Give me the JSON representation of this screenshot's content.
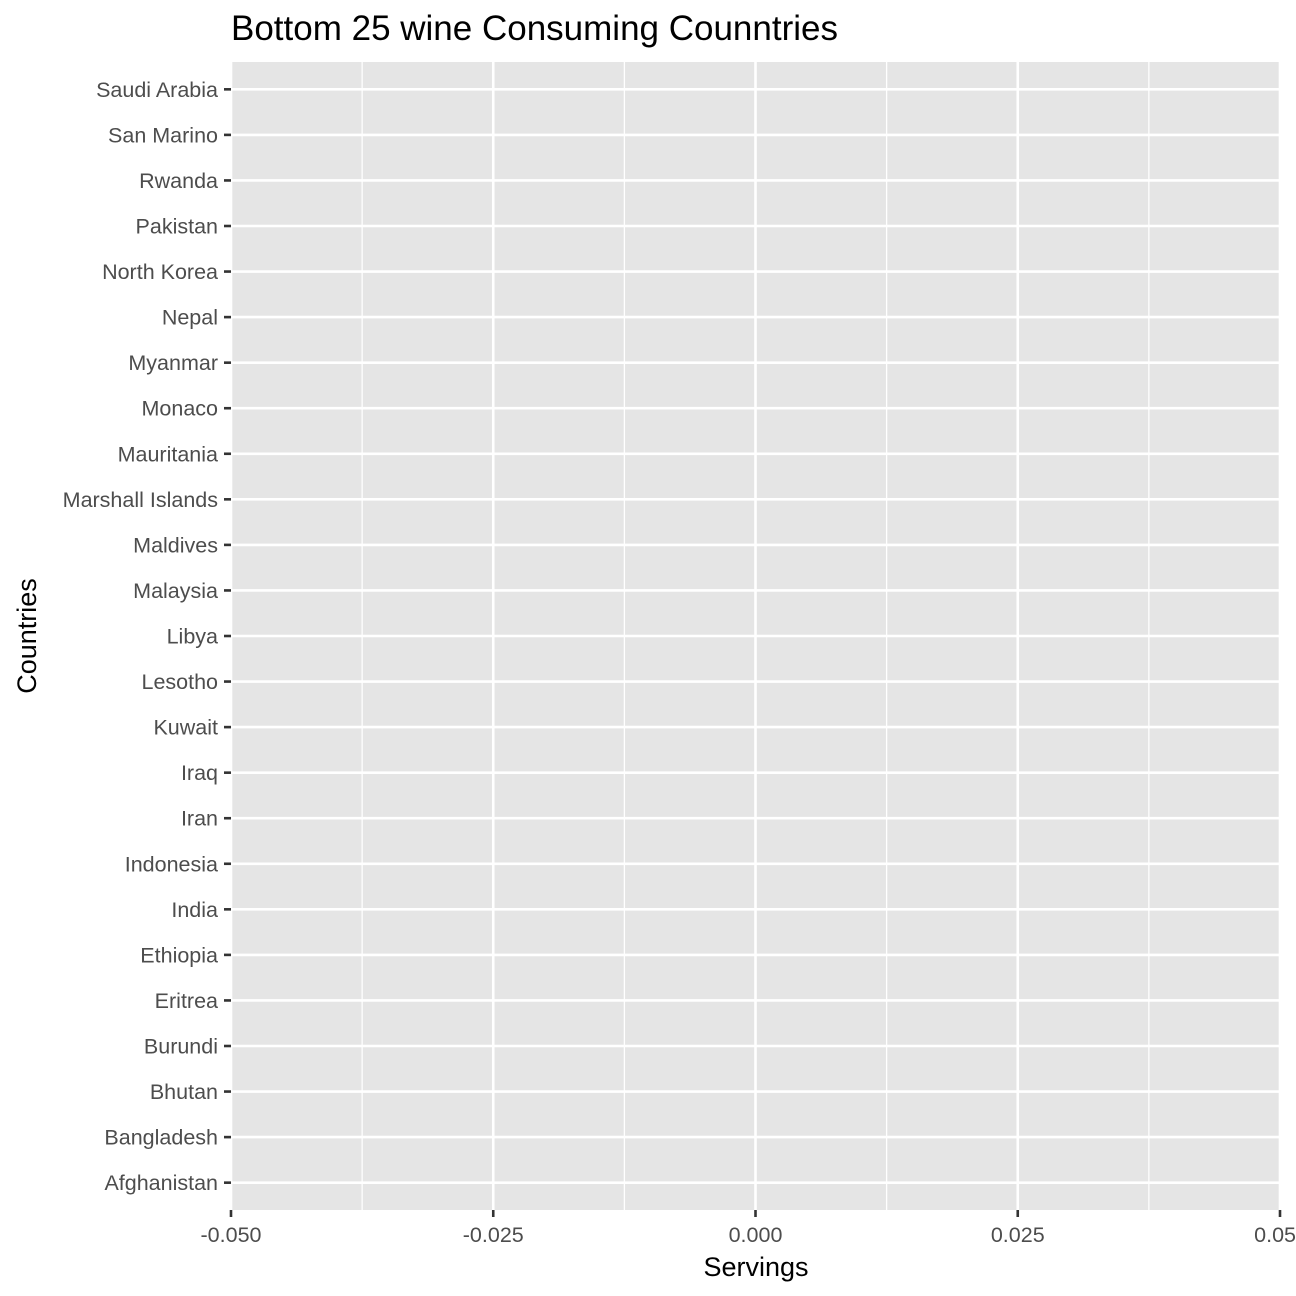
{
  "chart_data": {
    "type": "bar",
    "orientation": "horizontal",
    "title": "Bottom 25 wine Consuming Counntries",
    "xlabel": "Servings",
    "ylabel": "Countries",
    "categories": [
      "Afghanistan",
      "Bangladesh",
      "Bhutan",
      "Burundi",
      "Eritrea",
      "Ethiopia",
      "India",
      "Indonesia",
      "Iran",
      "Iraq",
      "Kuwait",
      "Lesotho",
      "Libya",
      "Malaysia",
      "Maldives",
      "Marshall Islands",
      "Mauritania",
      "Monaco",
      "Myanmar",
      "Nepal",
      "North Korea",
      "Pakistan",
      "Rwanda",
      "San Marino",
      "Saudi Arabia"
    ],
    "values": [
      0,
      0,
      0,
      0,
      0,
      0,
      0,
      0,
      0,
      0,
      0,
      0,
      0,
      0,
      0,
      0,
      0,
      0,
      0,
      0,
      0,
      0,
      0,
      0,
      0
    ],
    "xlim": [
      -0.05,
      0.05
    ],
    "x_ticks": [
      -0.05,
      -0.025,
      0,
      0.025,
      0.05
    ],
    "x_tick_labels": [
      "-0.050",
      "-0.025",
      "0.000",
      "0.025",
      "0.05"
    ],
    "grid": true,
    "legend": "none",
    "colors": {
      "panel": "#e5e5e5",
      "grid": "#ffffff",
      "tick_text": "#4d4d4d"
    }
  }
}
